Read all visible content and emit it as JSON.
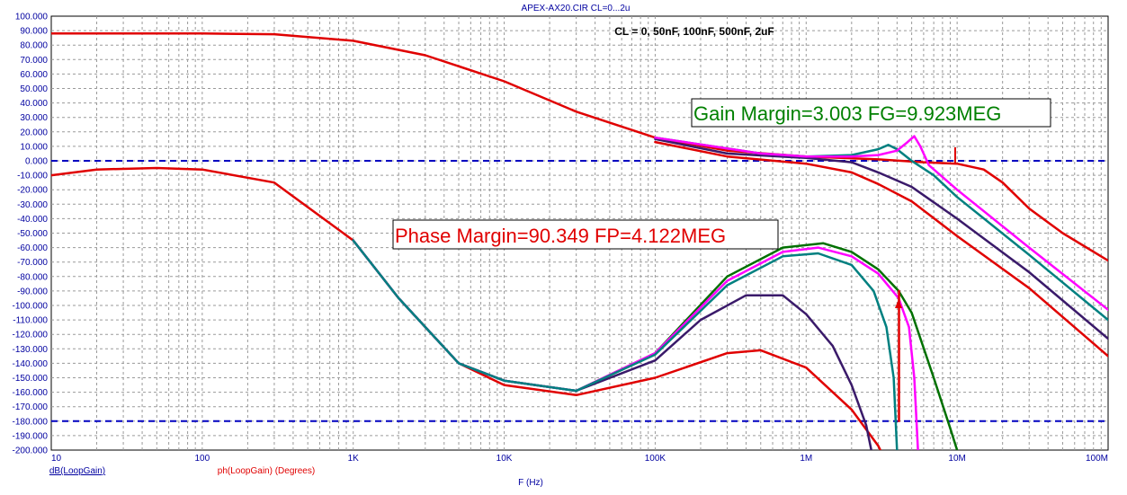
{
  "chart_data": {
    "type": "line",
    "title": "APEX-AX20.CIR CL=0...2u",
    "subtitle": "CL = 0, 50nF, 100nF, 500nF, 2uF",
    "xlabel": "F (Hz)",
    "ylabel": "",
    "x_scale": "log",
    "xlim": [
      10,
      100000000
    ],
    "ylim": [
      -200,
      100
    ],
    "y_ticks": [
      "100.000",
      "90.000",
      "80.000",
      "70.000",
      "60.000",
      "50.000",
      "40.000",
      "30.000",
      "20.000",
      "10.000",
      "0.000",
      "-10.000",
      "-20.000",
      "-30.000",
      "-40.000",
      "-50.000",
      "-60.000",
      "-70.000",
      "-80.000",
      "-90.000",
      "-100.000",
      "-110.000",
      "-120.000",
      "-130.000",
      "-140.000",
      "-150.000",
      "-160.000",
      "-170.000",
      "-180.000",
      "-190.000",
      "-200.000"
    ],
    "x_ticks": [
      "10",
      "100",
      "1K",
      "10K",
      "100K",
      "1M",
      "10M",
      "100M"
    ],
    "grid": true,
    "legend": {
      "gain": "dB(LoopGain)",
      "phase": "ph(LoopGain) (Degrees)"
    },
    "annotations": {
      "gain_margin": "Gain Margin=3.003 FG=9.923MEG",
      "phase_margin": "Phase Margin=90.349 FP=4.122MEG"
    },
    "reference_lines": [
      0,
      -180
    ],
    "colors": {
      "red": "#e00000",
      "magenta": "#ff00ff",
      "teal": "#008080",
      "purple": "#3a1a6a",
      "green": "#007000",
      "axis_text": "#0000a0",
      "reference": "#0000c0"
    },
    "series": [
      {
        "kind": "gain",
        "color": "#e00000",
        "points": [
          [
            10,
            88
          ],
          [
            100,
            88
          ],
          [
            300,
            87.5
          ],
          [
            1000,
            83
          ],
          [
            3000,
            73
          ],
          [
            10000,
            55
          ],
          [
            30000,
            34
          ],
          [
            100000,
            16
          ],
          [
            300000,
            7
          ],
          [
            1000000,
            3
          ],
          [
            3000000,
            1
          ],
          [
            6000000,
            -1
          ],
          [
            10000000,
            -2
          ],
          [
            15000000,
            -6
          ],
          [
            20000000,
            -15
          ],
          [
            30000000,
            -33
          ],
          [
            50000000,
            -50
          ],
          [
            100000000,
            -69
          ]
        ]
      },
      {
        "kind": "gain",
        "color": "#e00000",
        "points": [
          [
            100000,
            13
          ],
          [
            300000,
            3
          ],
          [
            1000000,
            -2
          ],
          [
            2000000,
            -8
          ],
          [
            3000000,
            -16
          ],
          [
            5000000,
            -28
          ],
          [
            10000000,
            -52
          ],
          [
            30000000,
            -88
          ],
          [
            100000000,
            -135
          ]
        ]
      },
      {
        "kind": "gain",
        "color": "#3a1a6a",
        "points": [
          [
            100000,
            15
          ],
          [
            300000,
            5
          ],
          [
            1000000,
            2
          ],
          [
            2000000,
            -1
          ],
          [
            3000000,
            -8
          ],
          [
            5000000,
            -18
          ],
          [
            10000000,
            -40
          ],
          [
            30000000,
            -77
          ],
          [
            100000000,
            -123
          ]
        ]
      },
      {
        "kind": "gain",
        "color": "#008080",
        "points": [
          [
            100000,
            16
          ],
          [
            500000,
            5
          ],
          [
            1000000,
            3
          ],
          [
            2000000,
            4
          ],
          [
            3000000,
            8
          ],
          [
            3500000,
            11
          ],
          [
            4000000,
            8
          ],
          [
            5000000,
            0
          ],
          [
            7000000,
            -10
          ],
          [
            10000000,
            -25
          ],
          [
            30000000,
            -65
          ],
          [
            100000000,
            -110
          ]
        ]
      },
      {
        "kind": "gain",
        "color": "#ff00ff",
        "points": [
          [
            100000,
            16
          ],
          [
            500000,
            5
          ],
          [
            1000000,
            3
          ],
          [
            2000000,
            3
          ],
          [
            3000000,
            4
          ],
          [
            4000000,
            7
          ],
          [
            4700000,
            13
          ],
          [
            5200000,
            17
          ],
          [
            5700000,
            10
          ],
          [
            6500000,
            -3
          ],
          [
            10000000,
            -20
          ],
          [
            30000000,
            -60
          ],
          [
            100000000,
            -103
          ]
        ]
      },
      {
        "kind": "phase",
        "color": "#e00000",
        "points": [
          [
            10,
            -10
          ],
          [
            20,
            -6
          ],
          [
            50,
            -5
          ],
          [
            100,
            -6
          ],
          [
            300,
            -15
          ],
          [
            1000,
            -55
          ],
          [
            2000,
            -95
          ],
          [
            5000,
            -140
          ],
          [
            10000,
            -155
          ],
          [
            30000,
            -162
          ],
          [
            100000,
            -150
          ],
          [
            300000,
            -133
          ],
          [
            500000,
            -131
          ],
          [
            1000000,
            -143
          ],
          [
            2000000,
            -172
          ],
          [
            3000000,
            -197
          ],
          [
            3100000,
            -200
          ]
        ]
      },
      {
        "kind": "phase",
        "color": "#3a1a6a",
        "points": [
          [
            1000,
            -55
          ],
          [
            2000,
            -95
          ],
          [
            5000,
            -140
          ],
          [
            10000,
            -152
          ],
          [
            30000,
            -159
          ],
          [
            100000,
            -138
          ],
          [
            200000,
            -110
          ],
          [
            400000,
            -93
          ],
          [
            700000,
            -93
          ],
          [
            1000000,
            -106
          ],
          [
            1500000,
            -128
          ],
          [
            2000000,
            -155
          ],
          [
            2500000,
            -183
          ],
          [
            2700000,
            -200
          ]
        ]
      },
      {
        "kind": "phase",
        "color": "#007000",
        "points": [
          [
            1000,
            -55
          ],
          [
            2000,
            -95
          ],
          [
            5000,
            -140
          ],
          [
            10000,
            -152
          ],
          [
            30000,
            -159
          ],
          [
            100000,
            -133
          ],
          [
            300000,
            -80
          ],
          [
            700000,
            -60
          ],
          [
            1300000,
            -57
          ],
          [
            2000000,
            -63
          ],
          [
            3000000,
            -75
          ],
          [
            4100000,
            -90
          ],
          [
            5000000,
            -105
          ],
          [
            7000000,
            -150
          ],
          [
            9000000,
            -185
          ],
          [
            10000000,
            -200
          ]
        ]
      },
      {
        "kind": "phase",
        "color": "#ff00ff",
        "points": [
          [
            1000,
            -55
          ],
          [
            2000,
            -95
          ],
          [
            5000,
            -140
          ],
          [
            10000,
            -152
          ],
          [
            30000,
            -159
          ],
          [
            100000,
            -133
          ],
          [
            300000,
            -83
          ],
          [
            700000,
            -63
          ],
          [
            1200000,
            -60
          ],
          [
            2000000,
            -66
          ],
          [
            3000000,
            -78
          ],
          [
            4100000,
            -95
          ],
          [
            4800000,
            -115
          ],
          [
            5200000,
            -150
          ],
          [
            5500000,
            -200
          ]
        ]
      },
      {
        "kind": "phase",
        "color": "#008080",
        "points": [
          [
            1000,
            -55
          ],
          [
            2000,
            -95
          ],
          [
            5000,
            -140
          ],
          [
            10000,
            -152
          ],
          [
            30000,
            -159
          ],
          [
            100000,
            -134
          ],
          [
            300000,
            -86
          ],
          [
            700000,
            -66
          ],
          [
            1200000,
            -64
          ],
          [
            2000000,
            -72
          ],
          [
            2800000,
            -90
          ],
          [
            3400000,
            -115
          ],
          [
            3800000,
            -150
          ],
          [
            4000000,
            -200
          ]
        ]
      },
      {
        "kind": "phase",
        "color": "#e00000",
        "points": [
          [
            4122000,
            -180
          ],
          [
            4122000,
            -90
          ]
        ]
      }
    ]
  }
}
